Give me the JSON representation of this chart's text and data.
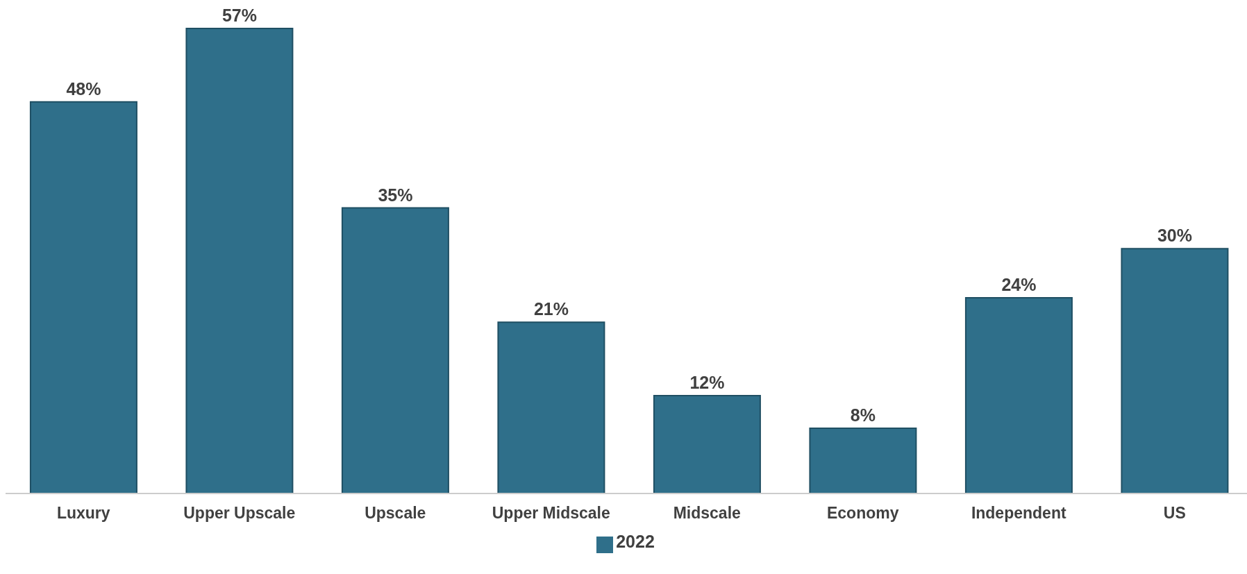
{
  "chart_data": {
    "type": "bar",
    "categories": [
      "Luxury",
      "Upper Upscale",
      "Upscale",
      "Upper Midscale",
      "Midscale",
      "Economy",
      "Independent",
      "US"
    ],
    "series": [
      {
        "name": "2022",
        "color": "#2f6f8a",
        "values": [
          48,
          57,
          35,
          21,
          12,
          8,
          24,
          30
        ],
        "value_labels": [
          "48%",
          "57%",
          "35%",
          "21%",
          "12%",
          "8%",
          "24%",
          "30%"
        ]
      }
    ],
    "tick_labels": "x",
    "legend": "bottom"
  }
}
